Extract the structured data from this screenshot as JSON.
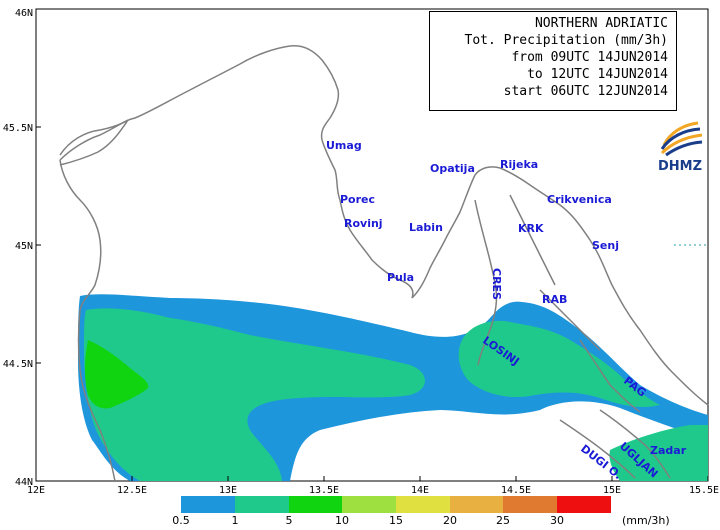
{
  "title": {
    "line1": "NORTHERN ADRIATIC",
    "line2": "Tot. Precipitation (mm/3h)",
    "line3": "from 09UTC 14JUN2014",
    "line4": "to 12UTC 14JUN2014",
    "line5": "start 06UTC 12JUN2014"
  },
  "logo": {
    "text": "DHMZ",
    "icon": "dhmz-swirl-logo"
  },
  "axes": {
    "lon_ticks": [
      "12E",
      "12.5E",
      "13E",
      "13.5E",
      "14E",
      "14.5E",
      "15E",
      "15.5E"
    ],
    "lat_ticks": [
      "46N",
      "45.5N",
      "45N",
      "44.5N",
      "44N"
    ]
  },
  "places": [
    {
      "name": "Umag"
    },
    {
      "name": "Porec"
    },
    {
      "name": "Rovinj"
    },
    {
      "name": "Pula"
    },
    {
      "name": "Labin"
    },
    {
      "name": "Opatija"
    },
    {
      "name": "Rijeka"
    },
    {
      "name": "Crikvenica"
    },
    {
      "name": "KRK"
    },
    {
      "name": "Senj"
    },
    {
      "name": "CRES"
    },
    {
      "name": "RAB"
    },
    {
      "name": "LOSINJ"
    },
    {
      "name": "PAG"
    },
    {
      "name": "Zadar"
    },
    {
      "name": "UGLJAN"
    },
    {
      "name": "DUGI O."
    }
  ],
  "legend": {
    "labels": [
      "0.5",
      "1",
      "5",
      "10",
      "15",
      "20",
      "25",
      "30"
    ],
    "unit": "(mm/3h)",
    "colors": [
      "#1e96dc",
      "#1fc98c",
      "#0fd40f",
      "#9ee040",
      "#e0e040",
      "#e8b040",
      "#e07a30",
      "#ee1010"
    ]
  },
  "colors": {
    "coast": "#808080",
    "light_blue": "#1e96dc",
    "teal": "#1fc98c",
    "green": "#0fd40f",
    "label_blue": "#1b1bd6"
  }
}
